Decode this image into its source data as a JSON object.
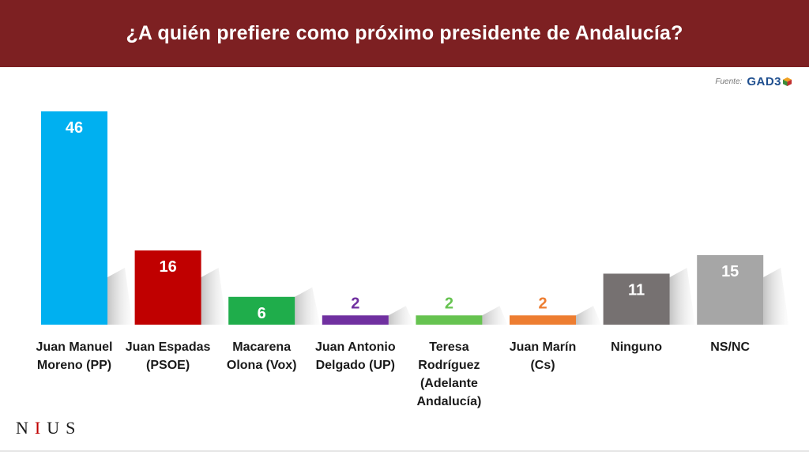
{
  "header": {
    "title": "¿A quién prefiere como próximo presidente de Andalucía?"
  },
  "source": {
    "label": "Fuente:",
    "logo_text": "GAD3"
  },
  "brand": {
    "n": "N",
    "i": "I",
    "u": "U",
    "s": "S"
  },
  "colors": {
    "header": "#7d2022",
    "pp": "#00b0f0",
    "psoe": "#c00000",
    "vox": "#1fad4b",
    "up": "#7030a0",
    "adelante": "#66c350",
    "cs": "#ed7d31",
    "ninguno": "#767171",
    "nsnc": "#a6a6a6"
  },
  "chart_data": {
    "type": "bar",
    "title": "¿A quién prefiere como próximo presidente de Andalucía?",
    "ylim": [
      0,
      50
    ],
    "categories": [
      [
        "Juan Manuel",
        "Moreno (PP)"
      ],
      [
        "Juan Espadas",
        "(PSOE)"
      ],
      [
        "Macarena",
        "Olona (Vox)"
      ],
      [
        "Juan Antonio",
        "Delgado (UP)"
      ],
      [
        "Teresa",
        "Rodríguez",
        "(Adelante",
        "Andalucía)"
      ],
      [
        "Juan Marín",
        "(Cs)"
      ],
      [
        "Ninguno"
      ],
      [
        "NS/NC"
      ]
    ],
    "values": [
      46,
      16,
      6,
      2,
      2,
      2,
      11,
      15
    ],
    "bar_colors": [
      "#00b0f0",
      "#c00000",
      "#1fad4b",
      "#7030a0",
      "#66c350",
      "#ed7d31",
      "#767171",
      "#a6a6a6"
    ],
    "label_colors": [
      "#ffffff",
      "#ffffff",
      "#ffffff",
      "#7030a0",
      "#66c350",
      "#ed7d31",
      "#ffffff",
      "#ffffff"
    ],
    "label_inside": [
      true,
      true,
      true,
      false,
      false,
      false,
      true,
      true
    ],
    "grid": false,
    "legend": "none"
  }
}
